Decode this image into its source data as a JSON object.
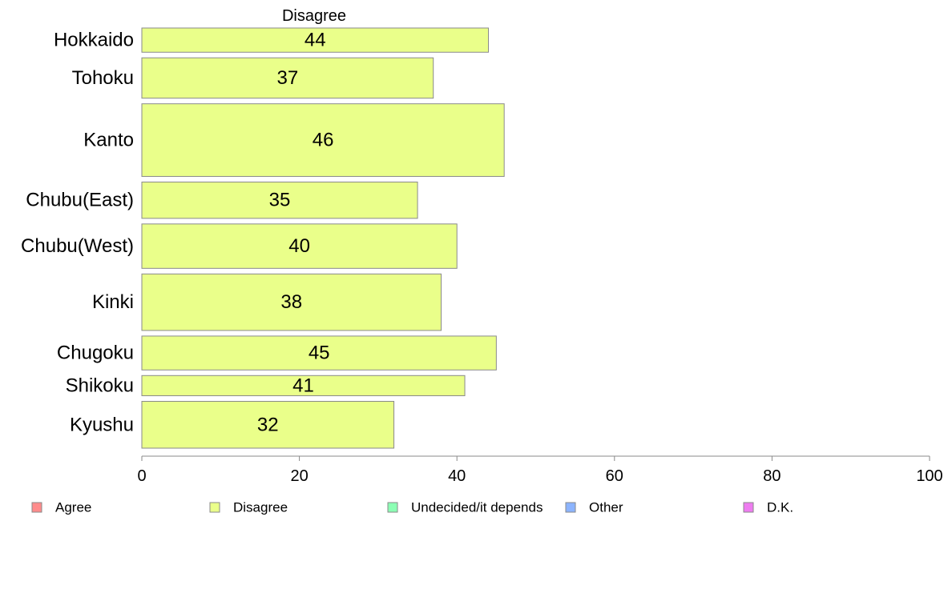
{
  "chart_data": {
    "type": "bar",
    "orientation": "horizontal",
    "panel_title": "Disagree",
    "categories": [
      "Hokkaido",
      "Tohoku",
      "Kanto",
      "Chubu(East)",
      "Chubu(West)",
      "Kinki",
      "Chugoku",
      "Shikoku",
      "Kyushu"
    ],
    "series": [
      {
        "name": "Disagree",
        "color": "#eaff8a",
        "values": [
          44,
          37,
          46,
          35,
          40,
          38,
          45,
          41,
          32
        ],
        "value_labels": [
          "44",
          "37",
          "46",
          "35",
          "40",
          "38",
          "45",
          "41",
          "32"
        ]
      }
    ],
    "category_weights": [
      3,
      5,
      9,
      4.5,
      5.5,
      7,
      4.2,
      2.5,
      5.8
    ],
    "xlim": [
      0,
      100
    ],
    "xticks": [
      "0",
      "20",
      "40",
      "60",
      "80",
      "100"
    ],
    "grid": false,
    "legend": {
      "position": "bottom",
      "items": [
        {
          "label": "Agree",
          "color": "#ff8c8c"
        },
        {
          "label": "Disagree",
          "color": "#eaff8a"
        },
        {
          "label": "Undecided/it depends",
          "color": "#8cffb4"
        },
        {
          "label": "Other",
          "color": "#8cb4ff"
        },
        {
          "label": "D.K.",
          "color": "#ee7cf0"
        }
      ]
    }
  }
}
